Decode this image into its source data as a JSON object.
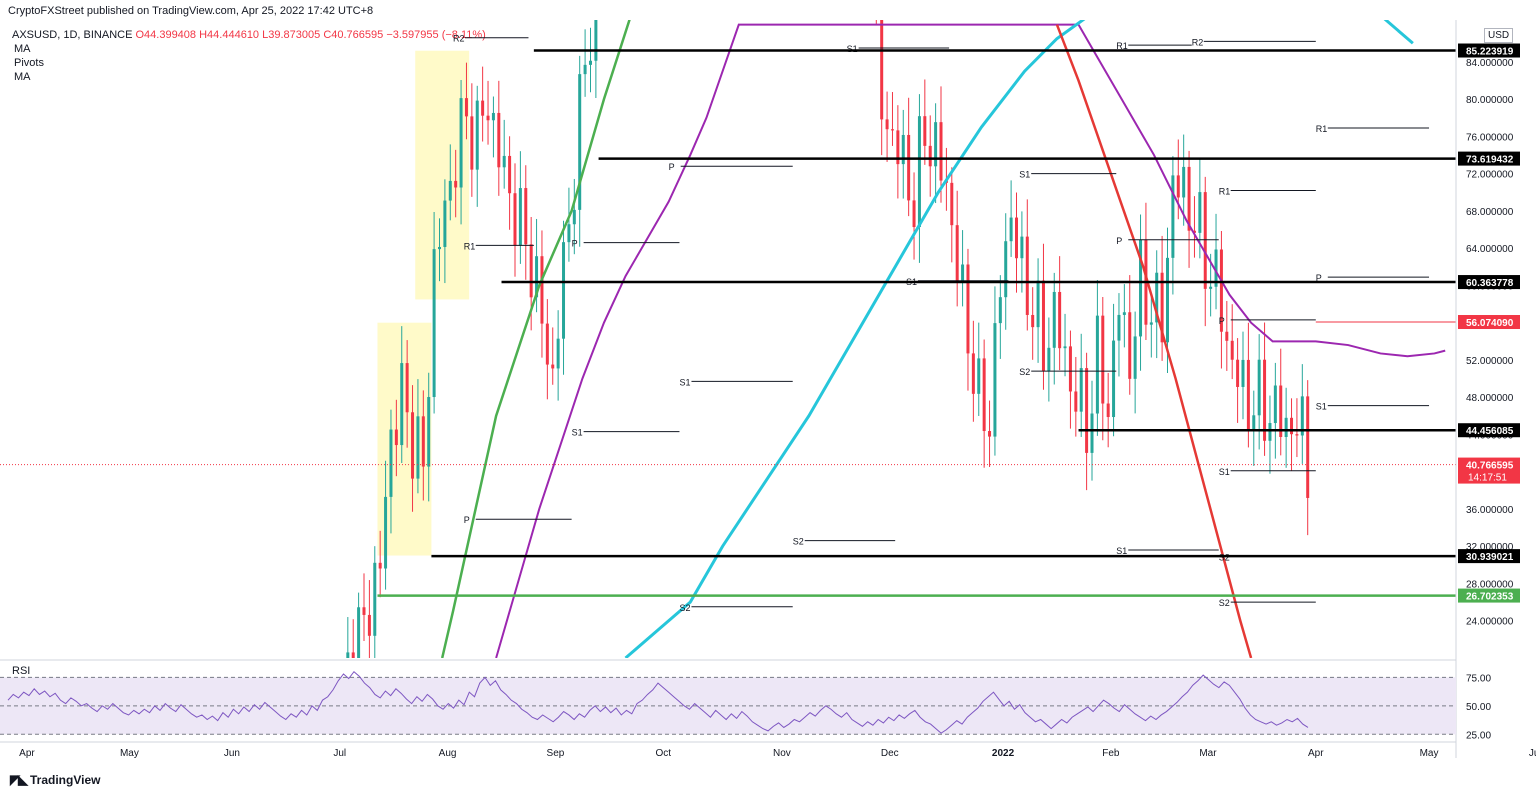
{
  "header": {
    "publisher_line": "CryptoFXStreet published on TradingView.com, Apr 25, 2022 17:42 UTC+8"
  },
  "symbol": {
    "name": "AXSUSD, 1D, BINANCE",
    "open": "O44.399408",
    "high": "H44.444610",
    "low": "L39.873005",
    "close": "C40.766595",
    "change": "−3.597955 (−8.11%)"
  },
  "indicators": [
    "MA",
    "Pivots",
    "MA"
  ],
  "rsi_label": "RSI",
  "currency": "USD",
  "footer": {
    "brand": "TradingView",
    "logo": "tradingview-logo-icon"
  },
  "colors": {
    "up": "#26a69a",
    "down": "#f23645",
    "ma_purple": "#9c27b0",
    "ma_cyan": "#26c6da",
    "trend_green": "#4caf50",
    "trend_red": "#e53935",
    "rsi_line": "#7e57c2",
    "rsi_band": "#ede7f6",
    "highlight": "#fff59d",
    "level_black": "#000000",
    "level_green": "#4caf50",
    "level_red": "#f23645"
  },
  "chart_data": {
    "type": "candlestick",
    "symbol": "AXSUSD",
    "interval": "1D",
    "x_ticks": [
      "Apr",
      "May",
      "Jun",
      "Jul",
      "Aug",
      "Sep",
      "Oct",
      "Nov",
      "Dec",
      "2022",
      "Feb",
      "Mar",
      "Apr",
      "May",
      "Jun"
    ],
    "y_ticks": [
      24,
      28,
      32,
      36,
      40,
      44,
      48,
      52,
      56,
      60,
      64,
      68,
      72,
      76,
      80,
      84
    ],
    "ylim": [
      20.0,
      88.5
    ],
    "tick_format": "6dp",
    "horizontal_levels": [
      {
        "value": 85.223919,
        "label": "85.223919",
        "color": "#000000",
        "x_start": 99
      },
      {
        "value": 73.619432,
        "label": "73.619432",
        "color": "#000000",
        "x_start": 111
      },
      {
        "value": 60.363778,
        "label": "60.363778",
        "color": "#000000",
        "x_start": 93
      },
      {
        "value": 56.07409,
        "label": "56.074090",
        "color": "#f23645",
        "x_start": 244
      },
      {
        "value": 44.456085,
        "label": "44.456085",
        "color": "#000000",
        "x_start": 200
      },
      {
        "value": 30.939021,
        "label": "30.939021",
        "color": "#000000",
        "x_start": 80
      },
      {
        "value": 26.702353,
        "label": "26.702353",
        "color": "#4caf50",
        "x_start": 70
      }
    ],
    "current_price": {
      "value": 40.766595,
      "label": "40.766595",
      "countdown": "14:17:51"
    },
    "pivot_labels": [
      {
        "label": "R2",
        "value": 86.6,
        "x1": 84,
        "x2": 98
      },
      {
        "label": "S1",
        "value": 85.5,
        "x1": 157,
        "x2": 176
      },
      {
        "label": "R1",
        "value": 85.8,
        "x1": 207,
        "x2": 221
      },
      {
        "label": "R2",
        "value": 86.2,
        "x1": 221,
        "x2": 244
      },
      {
        "label": "R1",
        "value": 76.9,
        "x1": 244,
        "x2": 265
      },
      {
        "label": "P",
        "value": 72.8,
        "x1": 124,
        "x2": 147
      },
      {
        "label": "S1",
        "value": 72.0,
        "x1": 189,
        "x2": 207
      },
      {
        "label": "R1",
        "value": 70.2,
        "x1": 226,
        "x2": 244
      },
      {
        "label": "P",
        "value": 64.9,
        "x1": 207,
        "x2": 226
      },
      {
        "label": "R1",
        "value": 64.3,
        "x1": 86,
        "x2": 99
      },
      {
        "label": "P",
        "value": 64.6,
        "x1": 106,
        "x2": 126
      },
      {
        "label": "P",
        "value": 60.9,
        "x1": 244,
        "x2": 265
      },
      {
        "label": "S1",
        "value": 60.5,
        "x1": 168,
        "x2": 187
      },
      {
        "label": "P",
        "value": 56.3,
        "x1": 226,
        "x2": 244
      },
      {
        "label": "S2",
        "value": 50.8,
        "x1": 189,
        "x2": 207
      },
      {
        "label": "S1",
        "value": 49.7,
        "x1": 126,
        "x2": 147
      },
      {
        "label": "S1",
        "value": 47.1,
        "x1": 244,
        "x2": 265
      },
      {
        "label": "S1",
        "value": 44.3,
        "x1": 106,
        "x2": 126
      },
      {
        "label": "S1",
        "value": 40.1,
        "x1": 226,
        "x2": 244
      },
      {
        "label": "P",
        "value": 34.9,
        "x1": 86,
        "x2": 106
      },
      {
        "label": "S2",
        "value": 32.6,
        "x1": 147,
        "x2": 166
      },
      {
        "label": "S1",
        "value": 31.6,
        "x1": 207,
        "x2": 226
      },
      {
        "label": "S2",
        "value": 30.9,
        "x1": 226,
        "x2": 244
      },
      {
        "label": "S2",
        "value": 25.5,
        "x1": 126,
        "x2": 147
      },
      {
        "label": "S2",
        "value": 26.0,
        "x1": 226,
        "x2": 244
      }
    ],
    "ma_purple": [
      [
        92,
        20
      ],
      [
        96,
        28
      ],
      [
        100,
        36
      ],
      [
        104,
        43
      ],
      [
        108,
        50
      ],
      [
        112,
        56
      ],
      [
        116,
        61
      ],
      [
        120,
        65
      ],
      [
        124,
        69
      ],
      [
        128,
        74
      ],
      [
        131,
        78
      ],
      [
        134,
        83
      ],
      [
        137,
        88
      ],
      [
        200,
        88
      ],
      [
        203,
        85
      ],
      [
        208,
        80
      ],
      [
        214,
        74
      ],
      [
        220,
        67
      ],
      [
        224,
        63
      ],
      [
        228,
        59
      ],
      [
        232,
        56
      ],
      [
        236,
        54
      ],
      [
        240,
        54
      ],
      [
        244,
        54
      ],
      [
        250,
        53.6
      ],
      [
        256,
        52.7
      ],
      [
        261,
        52.4
      ],
      [
        266,
        52.7
      ],
      [
        268,
        53.0
      ]
    ],
    "ma_cyan": [
      [
        116,
        20
      ],
      [
        124,
        24
      ],
      [
        128,
        26
      ],
      [
        134,
        32
      ],
      [
        142,
        39
      ],
      [
        150,
        46
      ],
      [
        158,
        54
      ],
      [
        166,
        62
      ],
      [
        174,
        70
      ],
      [
        182,
        77
      ],
      [
        190,
        83
      ],
      [
        196,
        86.5
      ],
      [
        202,
        89
      ],
      [
        256,
        89
      ],
      [
        262,
        86
      ]
    ],
    "trend_green": [
      [
        82,
        20
      ],
      [
        84,
        25
      ],
      [
        92,
        46
      ],
      [
        100,
        60
      ],
      [
        106,
        68
      ],
      [
        112,
        80
      ],
      [
        117,
        89
      ]
    ],
    "trend_red": [
      [
        196,
        88
      ],
      [
        200,
        82
      ],
      [
        206,
        72
      ],
      [
        212,
        62
      ],
      [
        218,
        50
      ],
      [
        224,
        37
      ],
      [
        230,
        24
      ],
      [
        232,
        20
      ]
    ],
    "rsi": {
      "label": "RSI",
      "levels": [
        75,
        50,
        25
      ],
      "ylim": [
        20,
        85
      ],
      "values": [
        55,
        60,
        57,
        62,
        59,
        65,
        60,
        63,
        58,
        61,
        55,
        52,
        57,
        54,
        50,
        52,
        48,
        45,
        50,
        47,
        52,
        48,
        44,
        42,
        46,
        43,
        47,
        44,
        50,
        46,
        52,
        48,
        45,
        51,
        47,
        43,
        40,
        42,
        38,
        41,
        37,
        44,
        40,
        47,
        43,
        49,
        45,
        51,
        47,
        53,
        49,
        45,
        41,
        38,
        43,
        40,
        46,
        42,
        50,
        46,
        55,
        58,
        64,
        72,
        78,
        74,
        80,
        76,
        70,
        66,
        60,
        57,
        63,
        59,
        65,
        61,
        56,
        52,
        58,
        54,
        60,
        56,
        50,
        47,
        52,
        48,
        55,
        51,
        62,
        58,
        70,
        75,
        68,
        72,
        64,
        60,
        55,
        52,
        47,
        44,
        40,
        38,
        42,
        39,
        36,
        40,
        45,
        42,
        38,
        43,
        40,
        46,
        50,
        45,
        49,
        44,
        48,
        42,
        46,
        43,
        52,
        55,
        60,
        64,
        70,
        66,
        62,
        58,
        54,
        50,
        47,
        52,
        48,
        44,
        40,
        46,
        42,
        38,
        43,
        39,
        45,
        41,
        36,
        33,
        30,
        28,
        32,
        35,
        31,
        34,
        38,
        36,
        40,
        44,
        41,
        46,
        50,
        47,
        43,
        40,
        44,
        38,
        35,
        32,
        36,
        33,
        38,
        35,
        40,
        37,
        42,
        39,
        43,
        46,
        40,
        36,
        34,
        30,
        26,
        29,
        33,
        37,
        34,
        40,
        44,
        48,
        54,
        58,
        62,
        56,
        50,
        54,
        47,
        51,
        44,
        40,
        36,
        38,
        34,
        30,
        34,
        38,
        35,
        40,
        43,
        46,
        49,
        45,
        50,
        55,
        52,
        48,
        45,
        51,
        47,
        43,
        40,
        37,
        41,
        38,
        42,
        45,
        49,
        53,
        58,
        62,
        68,
        72,
        77,
        73,
        69,
        66,
        71,
        68,
        62,
        56,
        48,
        42,
        38,
        36,
        34,
        36,
        33,
        35,
        38,
        36,
        39,
        34,
        31
      ]
    }
  }
}
